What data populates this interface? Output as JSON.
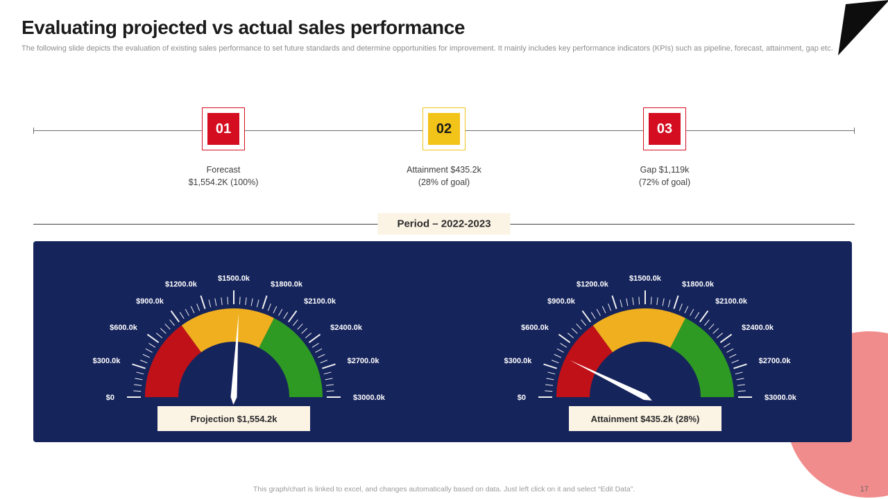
{
  "header": {
    "title": "Evaluating projected vs actual sales performance",
    "subtitle": "The following slide depicts the evaluation of existing sales performance to set future standards and determine opportunities for improvement. It mainly includes key performance indicators (KPIs)  such as pipeline, forecast, attainment, gap etc."
  },
  "timeline": {
    "items": [
      {
        "number": "01",
        "line1": "Forecast",
        "line2": "$1,554.2K (100%)",
        "accent": "#d40d20",
        "number_color": "#ffffff"
      },
      {
        "number": "02",
        "line1": "Attainment $435.2k",
        "line2": "(28% of goal)",
        "accent": "#f2c319",
        "number_color": "#1b1b1b"
      },
      {
        "number": "03",
        "line1": "Gap $1,119k",
        "line2": "(72% of goal)",
        "accent": "#d40d20",
        "number_color": "#ffffff"
      }
    ]
  },
  "period": {
    "label": "Period – 2022-2023"
  },
  "chart_data": [
    {
      "type": "gauge",
      "label": "Projection $1,554.2k",
      "value": 1554.2,
      "min": 0,
      "max": 3000,
      "tick_step": 60,
      "major_step": 300,
      "tick_labels": [
        "$0",
        "$300.0k",
        "$600.0k",
        "$900.0k",
        "$1200.0k",
        "$1500.0k",
        "$1800.0k",
        "$2100.0k",
        "$2400.0k",
        "$2700.0k",
        "$3000.0k"
      ],
      "zones": [
        {
          "from": 0,
          "to": 900,
          "color": "#c11118"
        },
        {
          "from": 900,
          "to": 1950,
          "color": "#efaf1e"
        },
        {
          "from": 1950,
          "to": 3000,
          "color": "#2e9a23"
        }
      ],
      "needle_color": "#ffffff"
    },
    {
      "type": "gauge",
      "label": "Attainment $435.2k (28%)",
      "value": 435.2,
      "min": 0,
      "max": 3000,
      "tick_step": 60,
      "major_step": 300,
      "tick_labels": [
        "$0",
        "$300.0k",
        "$600.0k",
        "$900.0k",
        "$1200.0k",
        "$1500.0k",
        "$1800.0k",
        "$2100.0k",
        "$2400.0k",
        "$2700.0k",
        "$3000.0k"
      ],
      "zones": [
        {
          "from": 0,
          "to": 900,
          "color": "#c11118"
        },
        {
          "from": 900,
          "to": 1950,
          "color": "#efaf1e"
        },
        {
          "from": 1950,
          "to": 3000,
          "color": "#2e9a23"
        }
      ],
      "needle_color": "#ffffff"
    }
  ],
  "footer": {
    "note": "This graph/chart is linked to excel,  and changes automatically based on data. Just left click on it and select “Edit Data”.",
    "page_number": "17"
  },
  "colors": {
    "panel_bg": "#16245c",
    "cream": "#fbf3e4",
    "red": "#d40d20",
    "yellow": "#f2c319",
    "green": "#2e9a23",
    "pink": "#f18c8c",
    "flag_black": "#0d0d0d"
  }
}
